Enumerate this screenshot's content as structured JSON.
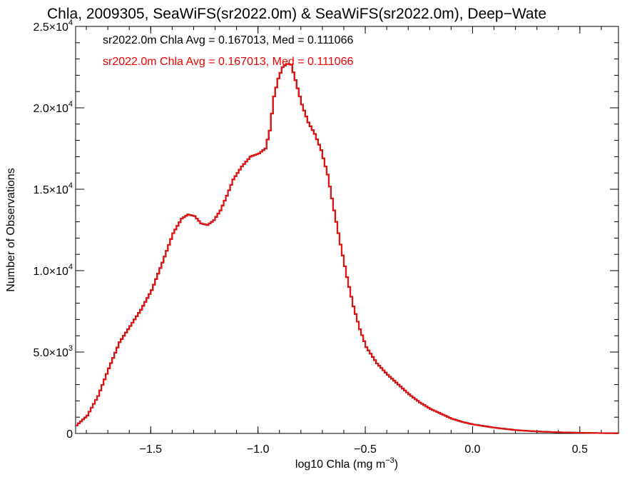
{
  "chart_data": {
    "type": "histogram",
    "title": "Chla, 2009305, SeaWiFS(sr2022.0m) & SeaWiFS(sr2022.0m), Deep−Wate",
    "xlabel": "log10 Chla (mg m",
    "xlabel_sup": "−3",
    "xlabel_end": ")",
    "ylabel": "Number of Observations",
    "xlim": [
      -1.85,
      0.68
    ],
    "ylim": [
      0,
      25000
    ],
    "x_ticks": [
      {
        "value": -1.5,
        "label": "−1.5"
      },
      {
        "value": -1.0,
        "label": "−1.0"
      },
      {
        "value": -0.5,
        "label": "−0.5"
      },
      {
        "value": 0.0,
        "label": "0.0"
      },
      {
        "value": 0.5,
        "label": "0.5"
      }
    ],
    "y_ticks": [
      {
        "value": 0,
        "mant": "0",
        "exp": ""
      },
      {
        "value": 5000,
        "mant": "5.0×10",
        "exp": "3"
      },
      {
        "value": 10000,
        "mant": "1.0×10",
        "exp": "4"
      },
      {
        "value": 15000,
        "mant": "1.5×10",
        "exp": "4"
      },
      {
        "value": 20000,
        "mant": "2.0×10",
        "exp": "4"
      },
      {
        "value": 25000,
        "mant": "2.5×10",
        "exp": "4"
      }
    ],
    "annotations": [
      {
        "text": "sr2022.0m Chla Avg = 0.167013, Med = 0.111066",
        "color": "#000000"
      },
      {
        "text": "sr2022.0m Chla Avg = 0.167013, Med = 0.111066",
        "color": "#ee0000"
      }
    ],
    "series": [
      {
        "color_front": "#ee1111",
        "color_back": "#000000",
        "points": [
          [
            -1.85,
            500
          ],
          [
            -1.8,
            1100
          ],
          [
            -1.75,
            2300
          ],
          [
            -1.7,
            4000
          ],
          [
            -1.65,
            5600
          ],
          [
            -1.6,
            6600
          ],
          [
            -1.55,
            7600
          ],
          [
            -1.5,
            8800
          ],
          [
            -1.45,
            10500
          ],
          [
            -1.4,
            12300
          ],
          [
            -1.36,
            13200
          ],
          [
            -1.33,
            13450
          ],
          [
            -1.3,
            13350
          ],
          [
            -1.27,
            12900
          ],
          [
            -1.24,
            12800
          ],
          [
            -1.21,
            13100
          ],
          [
            -1.18,
            13700
          ],
          [
            -1.15,
            14600
          ],
          [
            -1.12,
            15600
          ],
          [
            -1.08,
            16400
          ],
          [
            -1.04,
            17000
          ],
          [
            -1.0,
            17200
          ],
          [
            -0.97,
            17500
          ],
          [
            -0.95,
            18600
          ],
          [
            -0.93,
            20700
          ],
          [
            -0.91,
            21800
          ],
          [
            -0.89,
            22500
          ],
          [
            -0.87,
            22700
          ],
          [
            -0.85,
            22650
          ],
          [
            -0.83,
            21700
          ],
          [
            -0.8,
            20200
          ],
          [
            -0.77,
            19100
          ],
          [
            -0.74,
            18400
          ],
          [
            -0.71,
            17400
          ],
          [
            -0.68,
            15900
          ],
          [
            -0.65,
            13700
          ],
          [
            -0.62,
            11600
          ],
          [
            -0.59,
            9600
          ],
          [
            -0.56,
            7800
          ],
          [
            -0.53,
            6400
          ],
          [
            -0.5,
            5300
          ],
          [
            -0.45,
            4300
          ],
          [
            -0.4,
            3600
          ],
          [
            -0.35,
            3000
          ],
          [
            -0.3,
            2400
          ],
          [
            -0.25,
            1900
          ],
          [
            -0.2,
            1500
          ],
          [
            -0.15,
            1200
          ],
          [
            -0.1,
            900
          ],
          [
            -0.05,
            700
          ],
          [
            0.0,
            550
          ],
          [
            0.1,
            350
          ],
          [
            0.2,
            200
          ],
          [
            0.3,
            120
          ],
          [
            0.4,
            70
          ],
          [
            0.5,
            40
          ],
          [
            0.6,
            20
          ],
          [
            0.68,
            10
          ]
        ]
      }
    ]
  }
}
